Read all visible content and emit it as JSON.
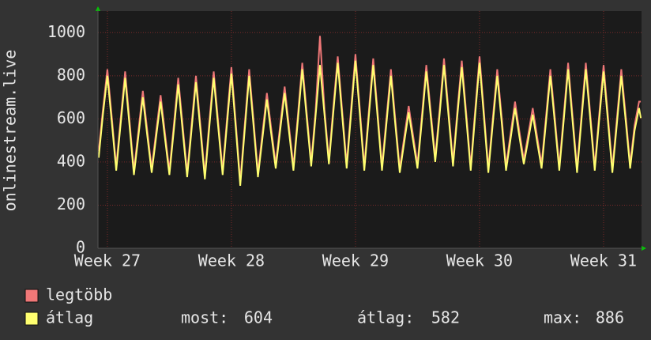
{
  "chart_data": {
    "type": "line",
    "y_label": "onlinestream.live",
    "xlim": [
      26.924,
      31.306
    ],
    "xticks": [
      {
        "value": 27,
        "label": "Week 27"
      },
      {
        "value": 28,
        "label": "Week 28"
      },
      {
        "value": 29,
        "label": "Week 29"
      },
      {
        "value": 30,
        "label": "Week 30"
      },
      {
        "value": 31,
        "label": "Week 31"
      }
    ],
    "ylim": [
      0,
      1100
    ],
    "yticks": [
      0,
      200,
      400,
      600,
      800,
      1000
    ],
    "grid": true,
    "x": [
      26.93,
      26.964,
      27,
      27.036,
      27.071,
      27.107,
      27.143,
      27.179,
      27.214,
      27.25,
      27.286,
      27.321,
      27.357,
      27.393,
      27.429,
      27.464,
      27.5,
      27.536,
      27.571,
      27.607,
      27.643,
      27.679,
      27.714,
      27.75,
      27.786,
      27.821,
      27.857,
      27.893,
      27.929,
      27.964,
      28,
      28.036,
      28.071,
      28.107,
      28.143,
      28.179,
      28.214,
      28.25,
      28.286,
      28.321,
      28.357,
      28.393,
      28.429,
      28.464,
      28.5,
      28.536,
      28.571,
      28.607,
      28.643,
      28.679,
      28.714,
      28.75,
      28.786,
      28.821,
      28.857,
      28.893,
      28.929,
      28.964,
      29,
      29.036,
      29.071,
      29.107,
      29.143,
      29.179,
      29.214,
      29.25,
      29.286,
      29.321,
      29.357,
      29.393,
      29.429,
      29.464,
      29.5,
      29.536,
      29.571,
      29.607,
      29.643,
      29.679,
      29.714,
      29.75,
      29.786,
      29.821,
      29.857,
      29.893,
      29.929,
      29.964,
      30,
      30.036,
      30.071,
      30.107,
      30.143,
      30.179,
      30.214,
      30.25,
      30.286,
      30.321,
      30.357,
      30.393,
      30.429,
      30.464,
      30.5,
      30.536,
      30.571,
      30.607,
      30.643,
      30.679,
      30.714,
      30.75,
      30.786,
      30.821,
      30.857,
      30.893,
      30.929,
      30.964,
      31,
      31.036,
      31.071,
      31.107,
      31.143,
      31.179,
      31.214,
      31.25,
      31.286,
      31.3
    ],
    "series": [
      {
        "name": "legtöbb",
        "color": "#f07878",
        "values": [
          450,
          645,
          830,
          605,
          380,
          600,
          820,
          590,
          360,
          545,
          730,
          550,
          370,
          540,
          710,
          535,
          360,
          575,
          790,
          570,
          350,
          575,
          800,
          570,
          340,
          580,
          820,
          590,
          360,
          600,
          840,
          575,
          310,
          570,
          830,
          590,
          350,
          535,
          720,
          555,
          390,
          570,
          750,
          565,
          380,
          620,
          860,
          630,
          400,
          640,
          985,
          645,
          410,
          650,
          890,
          640,
          390,
          645,
          900,
          640,
          380,
          630,
          880,
          630,
          380,
          605,
          830,
          600,
          370,
          515,
          660,
          525,
          390,
          620,
          850,
          635,
          420,
          650,
          880,
          640,
          400,
          635,
          870,
          625,
          380,
          635,
          890,
          630,
          370,
          600,
          830,
          605,
          380,
          530,
          680,
          545,
          410,
          530,
          650,
          520,
          390,
          610,
          830,
          605,
          380,
          620,
          860,
          615,
          370,
          615,
          860,
          620,
          380,
          615,
          850,
          610,
          370,
          600,
          830,
          610,
          390,
          570,
          680,
          680
        ]
      },
      {
        "name": "átlag",
        "color": "#ffff70",
        "values": [
          420,
          620,
          800,
          580,
          360,
          575,
          790,
          565,
          340,
          520,
          700,
          525,
          350,
          515,
          680,
          510,
          340,
          550,
          760,
          545,
          330,
          550,
          770,
          545,
          320,
          555,
          790,
          565,
          340,
          575,
          810,
          550,
          290,
          545,
          800,
          565,
          330,
          510,
          690,
          530,
          370,
          545,
          720,
          540,
          360,
          595,
          830,
          605,
          380,
          615,
          850,
          620,
          390,
          625,
          860,
          615,
          370,
          620,
          870,
          615,
          360,
          605,
          850,
          605,
          360,
          580,
          800,
          575,
          350,
          490,
          630,
          500,
          370,
          595,
          820,
          610,
          400,
          625,
          850,
          615,
          380,
          610,
          840,
          600,
          360,
          610,
          860,
          605,
          350,
          575,
          800,
          580,
          360,
          505,
          650,
          520,
          390,
          505,
          620,
          495,
          370,
          585,
          800,
          580,
          360,
          595,
          830,
          590,
          350,
          590,
          830,
          595,
          360,
          590,
          820,
          585,
          350,
          575,
          800,
          585,
          370,
          545,
          650,
          604
        ]
      }
    ],
    "stats": [
      {
        "label": "most:",
        "value": 604
      },
      {
        "label": "átlag:",
        "value": 582
      },
      {
        "label": "max:",
        "value": 886
      }
    ]
  }
}
